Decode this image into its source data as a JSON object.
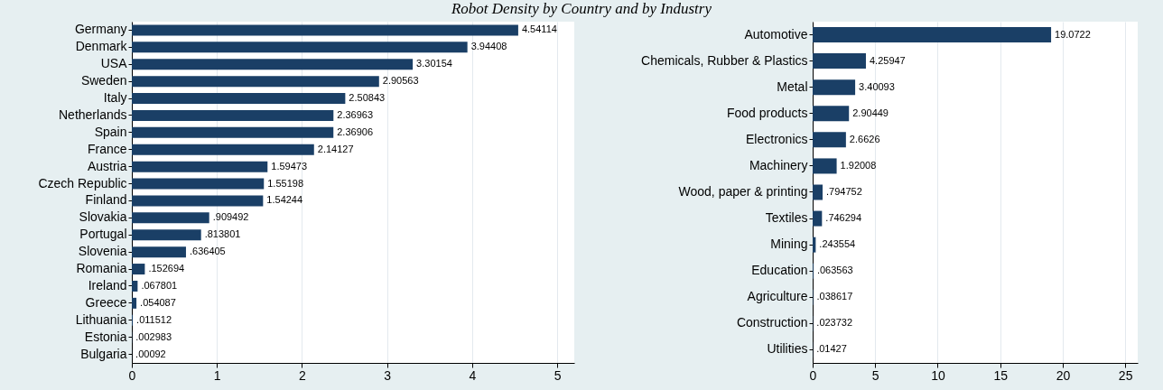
{
  "chart_data": [
    {
      "type": "bar",
      "title": "Robot Density by Country and by Industry",
      "orientation": "horizontal",
      "color": "#1a3f66",
      "grid": "x",
      "categories": [
        "Germany",
        "Denmark",
        "USA",
        "Sweden",
        "Italy",
        "Netherlands",
        "Spain",
        "France",
        "Austria",
        "Czech Republic",
        "Finland",
        "Slovakia",
        "Portugal",
        "Slovenia",
        "Romania",
        "Ireland",
        "Greece",
        "Lithuania",
        "Estonia",
        "Bulgaria"
      ],
      "values": [
        4.54114,
        3.94408,
        3.30154,
        2.90563,
        2.50843,
        2.36963,
        2.36906,
        2.14127,
        1.59473,
        1.55198,
        1.54244,
        0.909492,
        0.813801,
        0.636405,
        0.152694,
        0.067801,
        0.054087,
        0.011512,
        0.002983,
        0.00092
      ],
      "value_labels": [
        "4.54114",
        "3.94408",
        "3.30154",
        "2.90563",
        "2.50843",
        "2.36963",
        "2.36906",
        "2.14127",
        "1.59473",
        "1.55198",
        "1.54244",
        ".909492",
        ".813801",
        ".636405",
        ".152694",
        ".067801",
        ".054087",
        ".011512",
        ".002983",
        ".00092"
      ],
      "xlim": [
        0,
        5.2
      ],
      "xticks": [
        0,
        1,
        2,
        3,
        4,
        5
      ]
    },
    {
      "type": "bar",
      "orientation": "horizontal",
      "color": "#1a3f66",
      "grid": "x",
      "categories": [
        "Automotive",
        "Chemicals, Rubber & Plastics",
        "Metal",
        "Food products",
        "Electronics",
        "Machinery",
        "Wood, paper & printing",
        "Textiles",
        "Mining",
        "Education",
        "Agriculture",
        "Construction",
        "Utilities"
      ],
      "values": [
        19.0722,
        4.25947,
        3.40093,
        2.90449,
        2.6626,
        1.92008,
        0.794752,
        0.746294,
        0.243554,
        0.063563,
        0.038617,
        0.023732,
        0.01427
      ],
      "value_labels": [
        "19.0722",
        "4.25947",
        "3.40093",
        "2.90449",
        "2.6626",
        "1.92008",
        ".794752",
        ".746294",
        ".243554",
        ".063563",
        ".038617",
        ".023732",
        ".01427"
      ],
      "xlim": [
        0,
        26
      ],
      "xticks": [
        0,
        5,
        10,
        15,
        20,
        25
      ]
    }
  ]
}
